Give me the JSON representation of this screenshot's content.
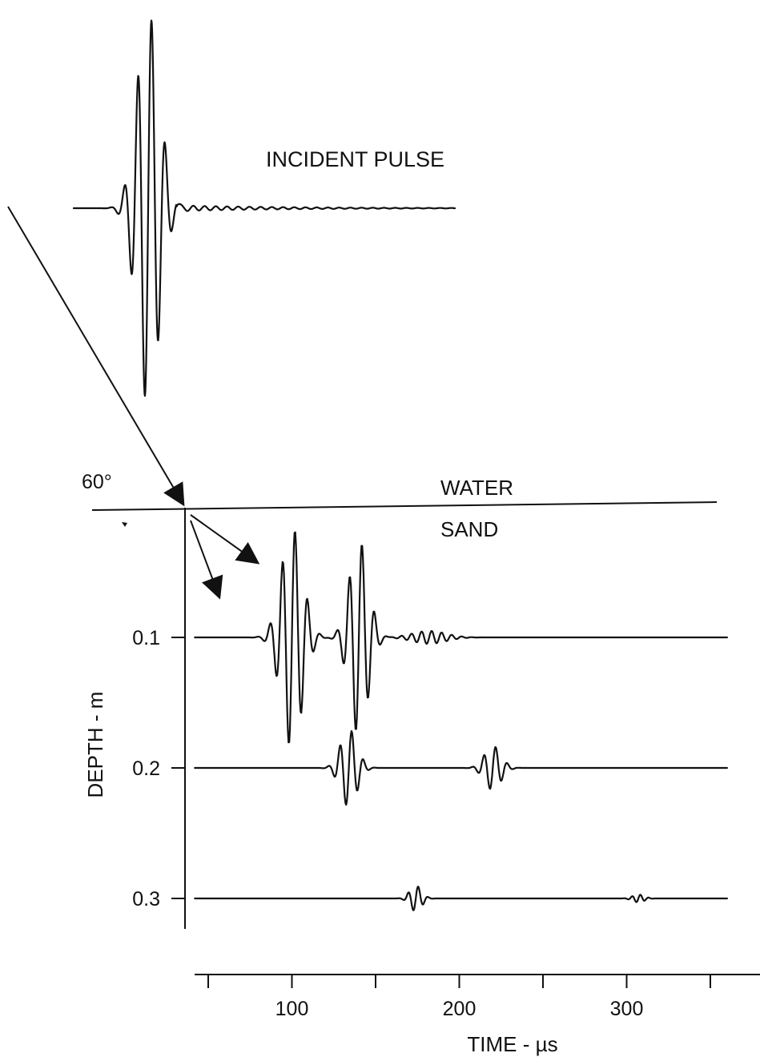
{
  "colors": {
    "ink": "#111111",
    "background": "#ffffff"
  },
  "chart_data": {
    "type": "line",
    "title": "",
    "incident_label": "INCIDENT PULSE",
    "angle_label": "60°",
    "upper_medium": "WATER",
    "lower_medium": "SAND",
    "xlabel": "TIME  -  µs",
    "ylabel": "DEPTH  -  m",
    "xlim": [
      45,
      355
    ],
    "ylim": [
      0,
      0.32
    ],
    "x_ticks": [
      50,
      100,
      150,
      200,
      250,
      300,
      350
    ],
    "x_tick_labels": [
      {
        "value": 100,
        "label": "100"
      },
      {
        "value": 200,
        "label": "200"
      },
      {
        "value": 300,
        "label": "300"
      }
    ],
    "y_ticks": [
      {
        "value": 0.1,
        "label": "0.1"
      },
      {
        "value": 0.2,
        "label": "0.2"
      },
      {
        "value": 0.3,
        "label": "0.3"
      }
    ],
    "series": [
      {
        "depth": 0.1,
        "x_end": 360,
        "packets": [
          {
            "center": 100,
            "amp": 0.085,
            "period": 7.5,
            "width": 9
          },
          {
            "center": 140,
            "amp": 0.075,
            "period": 7.5,
            "width": 8
          },
          {
            "center": 182,
            "amp": 0.005,
            "period": 6,
            "width": 14
          }
        ]
      },
      {
        "depth": 0.2,
        "x_end": 360,
        "packets": [
          {
            "center": 134,
            "amp": 0.03,
            "period": 7,
            "width": 7
          },
          {
            "center": 220,
            "amp": 0.017,
            "period": 7,
            "width": 7
          }
        ]
      },
      {
        "depth": 0.3,
        "x_end": 360,
        "packets": [
          {
            "center": 174,
            "amp": 0.01,
            "period": 6,
            "width": 5
          },
          {
            "center": 307,
            "amp": 0.003,
            "period": 5,
            "width": 5
          }
        ]
      }
    ],
    "incident_pulse": {
      "center": 185,
      "amp": 245,
      "period": 17,
      "width": 20
    }
  }
}
